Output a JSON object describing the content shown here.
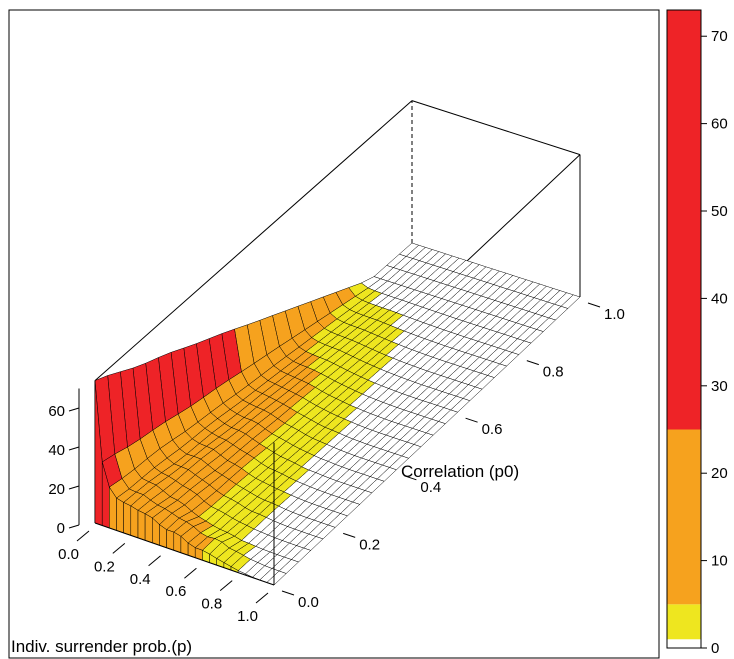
{
  "chart_data": {
    "type": "surface",
    "title": "",
    "xlabel": "Indiv. surrender prob.(p)",
    "ylabel": "Correlation (p0)",
    "zlabel": "",
    "x_ticks": [
      "0.0",
      "0.2",
      "0.4",
      "0.6",
      "0.8",
      "1.0"
    ],
    "y_ticks": [
      "0.0",
      "0.2",
      "0.4",
      "0.6",
      "0.8",
      "1.0"
    ],
    "z_ticks": [
      "0",
      "20",
      "40",
      "60"
    ],
    "xlim": [
      0,
      1
    ],
    "ylim": [
      0,
      1
    ],
    "zlim": [
      0,
      73
    ],
    "approx_profile": {
      "description_x": "surface value vs p at p0 = 0",
      "x": [
        0.0,
        0.02,
        0.05,
        0.1,
        0.15,
        0.2,
        0.3,
        0.4,
        0.5,
        0.6,
        0.7,
        0.8,
        0.9,
        1.0
      ],
      "z": [
        73,
        45,
        25,
        18,
        16,
        15,
        13,
        10,
        7,
        5,
        3,
        1,
        0,
        0
      ]
    },
    "colorbar": {
      "ticks": [
        "0",
        "10",
        "20",
        "30",
        "40",
        "50",
        "60",
        "70"
      ],
      "range": [
        0,
        73
      ],
      "bands": [
        {
          "from": 0,
          "to": 1,
          "color": "#ffffff"
        },
        {
          "from": 1,
          "to": 5,
          "color": "#eee61f"
        },
        {
          "from": 5,
          "to": 25,
          "color": "#f6a21e"
        },
        {
          "from": 25,
          "to": 73,
          "color": "#ee2327"
        }
      ]
    },
    "colors": {
      "white": "#ffffff",
      "yellow": "#eee61f",
      "orange": "#f6a21e",
      "red": "#ee2327"
    }
  }
}
